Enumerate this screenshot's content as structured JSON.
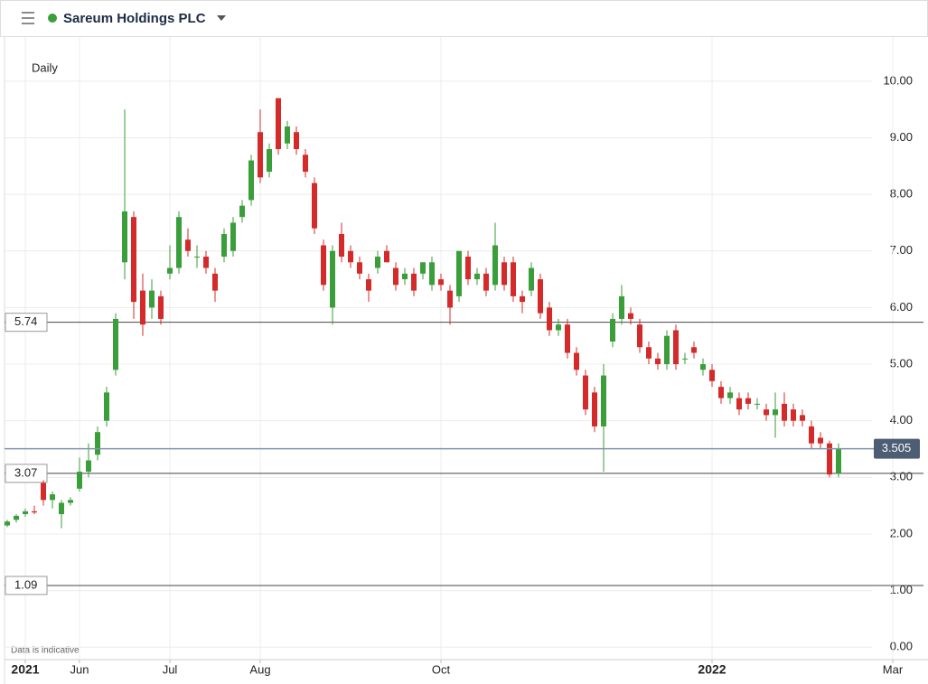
{
  "chart_data": {
    "type": "candlestick",
    "title": "Sareum Holdings PLC",
    "interval": "Daily",
    "note": "Data is indicative",
    "categories": [
      null,
      null,
      "2021",
      null,
      null,
      null,
      null,
      null,
      "Jun",
      null,
      null,
      null,
      null,
      null,
      null,
      null,
      null,
      null,
      "Jul",
      null,
      null,
      null,
      null,
      null,
      null,
      null,
      null,
      null,
      "Aug",
      null,
      null,
      null,
      null,
      null,
      null,
      null,
      null,
      null,
      null,
      null,
      null,
      null,
      null,
      null,
      null,
      null,
      null,
      null,
      "Oct",
      null,
      null,
      null,
      null,
      null,
      null,
      null,
      null,
      null,
      null,
      null,
      null,
      null,
      null,
      null,
      null,
      null,
      null,
      null,
      null,
      null,
      null,
      null,
      null,
      null,
      null,
      null,
      null,
      null,
      "2022",
      null,
      null,
      null,
      null,
      null,
      null,
      null,
      null,
      null,
      null,
      null,
      null,
      null,
      null,
      null,
      null,
      null,
      null,
      null,
      "Mar"
    ],
    "open": [
      2.15,
      2.25,
      2.35,
      2.4,
      2.9,
      2.6,
      2.35,
      2.55,
      2.8,
      3.1,
      3.4,
      4.0,
      4.9,
      6.8,
      7.6,
      6.3,
      6.0,
      6.2,
      6.6,
      6.7,
      7.2,
      6.9,
      6.9,
      6.6,
      6.9,
      7.0,
      7.6,
      7.9,
      9.1,
      8.4,
      9.7,
      8.9,
      9.1,
      8.7,
      8.2,
      7.1,
      6.0,
      7.3,
      7.0,
      6.8,
      6.5,
      6.7,
      7.0,
      6.7,
      6.5,
      6.6,
      6.6,
      6.4,
      6.5,
      6.3,
      6.2,
      6.9,
      6.5,
      6.6,
      6.4,
      6.8,
      6.8,
      6.2,
      6.3,
      6.5,
      6.0,
      5.6,
      5.7,
      5.2,
      4.8,
      4.5,
      3.9,
      5.4,
      5.8,
      5.9,
      5.7,
      5.3,
      5.1,
      5.0,
      5.6,
      5.1,
      5.3,
      4.9,
      4.9,
      4.6,
      4.4,
      4.4,
      4.4,
      4.3,
      4.2,
      4.1,
      4.3,
      4.2,
      4.1,
      3.9,
      3.7,
      3.6,
      3.07,
      null,
      null,
      null,
      null,
      null,
      null
    ],
    "high": [
      2.25,
      2.35,
      2.45,
      2.5,
      2.95,
      2.75,
      2.6,
      2.65,
      3.35,
      3.6,
      3.9,
      4.6,
      5.9,
      9.5,
      7.7,
      6.6,
      6.5,
      6.3,
      7.1,
      7.7,
      7.4,
      7.1,
      7.0,
      6.7,
      7.4,
      7.6,
      7.9,
      8.7,
      9.5,
      8.9,
      9.7,
      9.3,
      9.2,
      8.8,
      8.3,
      7.2,
      7.1,
      7.5,
      7.1,
      6.9,
      6.6,
      7.0,
      7.1,
      6.8,
      6.7,
      6.7,
      6.8,
      6.9,
      6.6,
      6.4,
      7.0,
      7.0,
      6.7,
      6.7,
      7.5,
      6.9,
      6.9,
      6.3,
      6.8,
      6.6,
      6.1,
      5.8,
      5.8,
      5.3,
      4.9,
      4.6,
      5.0,
      5.9,
      6.4,
      6.0,
      5.8,
      5.4,
      5.2,
      5.6,
      5.7,
      5.2,
      5.4,
      5.1,
      5.0,
      4.7,
      4.6,
      4.5,
      4.5,
      4.4,
      4.3,
      4.5,
      4.5,
      4.3,
      4.2,
      4.0,
      3.8,
      3.65,
      3.6,
      null,
      null,
      null,
      null,
      null,
      null
    ],
    "low": [
      2.12,
      2.2,
      2.3,
      2.35,
      2.5,
      2.45,
      2.1,
      2.5,
      2.75,
      3.0,
      3.3,
      3.9,
      4.8,
      6.5,
      5.8,
      5.5,
      5.8,
      5.7,
      6.5,
      6.6,
      6.9,
      6.7,
      6.6,
      6.1,
      6.8,
      6.9,
      7.5,
      7.8,
      8.2,
      8.3,
      8.7,
      8.8,
      8.7,
      8.3,
      7.3,
      6.3,
      5.7,
      6.8,
      6.7,
      6.5,
      6.1,
      6.6,
      6.8,
      6.3,
      6.4,
      6.2,
      6.5,
      6.3,
      6.3,
      5.7,
      6.1,
      6.4,
      6.4,
      6.2,
      6.3,
      6.3,
      6.1,
      5.9,
      6.2,
      5.8,
      5.5,
      5.5,
      5.1,
      4.8,
      4.1,
      3.8,
      3.1,
      5.3,
      5.7,
      5.7,
      5.2,
      5.0,
      4.9,
      4.9,
      4.9,
      5.0,
      5.1,
      4.8,
      4.6,
      4.3,
      4.3,
      4.1,
      4.2,
      4.2,
      4.0,
      3.7,
      3.9,
      3.9,
      3.9,
      3.5,
      3.5,
      3.0,
      3.0,
      null,
      null,
      null,
      null,
      null,
      null
    ],
    "close": [
      2.22,
      2.32,
      2.4,
      2.38,
      2.6,
      2.7,
      2.55,
      2.6,
      3.1,
      3.3,
      3.8,
      4.5,
      5.8,
      7.7,
      6.1,
      5.7,
      6.3,
      5.8,
      6.7,
      7.6,
      7.0,
      6.9,
      6.7,
      6.3,
      7.3,
      7.5,
      7.8,
      8.6,
      8.3,
      8.8,
      8.8,
      9.2,
      8.8,
      8.4,
      7.4,
      6.4,
      7.0,
      6.9,
      6.8,
      6.6,
      6.3,
      6.9,
      6.8,
      6.4,
      6.6,
      6.3,
      6.8,
      6.8,
      6.4,
      6.0,
      7.0,
      6.5,
      6.6,
      6.3,
      7.1,
      6.4,
      6.2,
      6.1,
      6.7,
      5.9,
      5.6,
      5.7,
      5.2,
      4.9,
      4.2,
      3.9,
      4.8,
      5.8,
      6.2,
      5.8,
      5.3,
      5.1,
      5.0,
      5.5,
      5.0,
      5.1,
      5.2,
      5.0,
      4.7,
      4.4,
      4.5,
      4.2,
      4.3,
      4.3,
      4.1,
      4.2,
      4.0,
      4.0,
      4.0,
      3.6,
      3.6,
      3.05,
      3.505,
      null,
      null,
      null,
      null,
      null,
      null
    ],
    "up_color": "#3a9e3a",
    "down_color": "#d42a2a",
    "levels": [
      5.74,
      3.07,
      1.09
    ],
    "last_price": 3.505,
    "ylim": [
      -0.22,
      10.78
    ],
    "yticks": [
      {
        "value": 0,
        "label": "0.00"
      },
      {
        "value": 1,
        "label": "1.00"
      },
      {
        "value": 2,
        "label": "2.00"
      },
      {
        "value": 3,
        "label": "3.00"
      },
      {
        "value": 4,
        "label": "4.00"
      },
      {
        "value": 5,
        "label": "5.00"
      },
      {
        "value": 6,
        "label": "6.00"
      },
      {
        "value": 7,
        "label": "7.00"
      },
      {
        "value": 8,
        "label": "8.00"
      },
      {
        "value": 9,
        "label": "9.00"
      },
      {
        "value": 10,
        "label": "10.00"
      }
    ],
    "grid": true
  }
}
